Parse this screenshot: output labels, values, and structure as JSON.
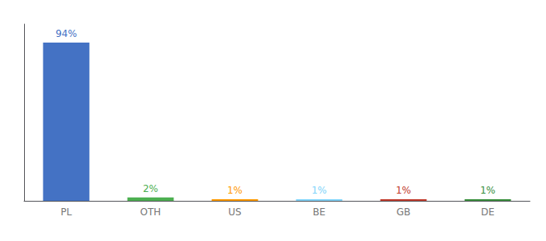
{
  "chart_data": {
    "type": "bar",
    "categories": [
      "PL",
      "OTH",
      "US",
      "BE",
      "GB",
      "DE"
    ],
    "values": [
      94,
      2,
      1,
      1,
      1,
      1
    ],
    "value_labels": [
      "94%",
      "2%",
      "1%",
      "1%",
      "1%",
      "1%"
    ],
    "colors": [
      "#4472c4",
      "#4caf50",
      "#ff9800",
      "#81d4fa",
      "#c0392b",
      "#388e3c"
    ],
    "data_labels": true,
    "ylim": [
      0,
      105
    ],
    "grid": false,
    "tick_labels": "x"
  }
}
